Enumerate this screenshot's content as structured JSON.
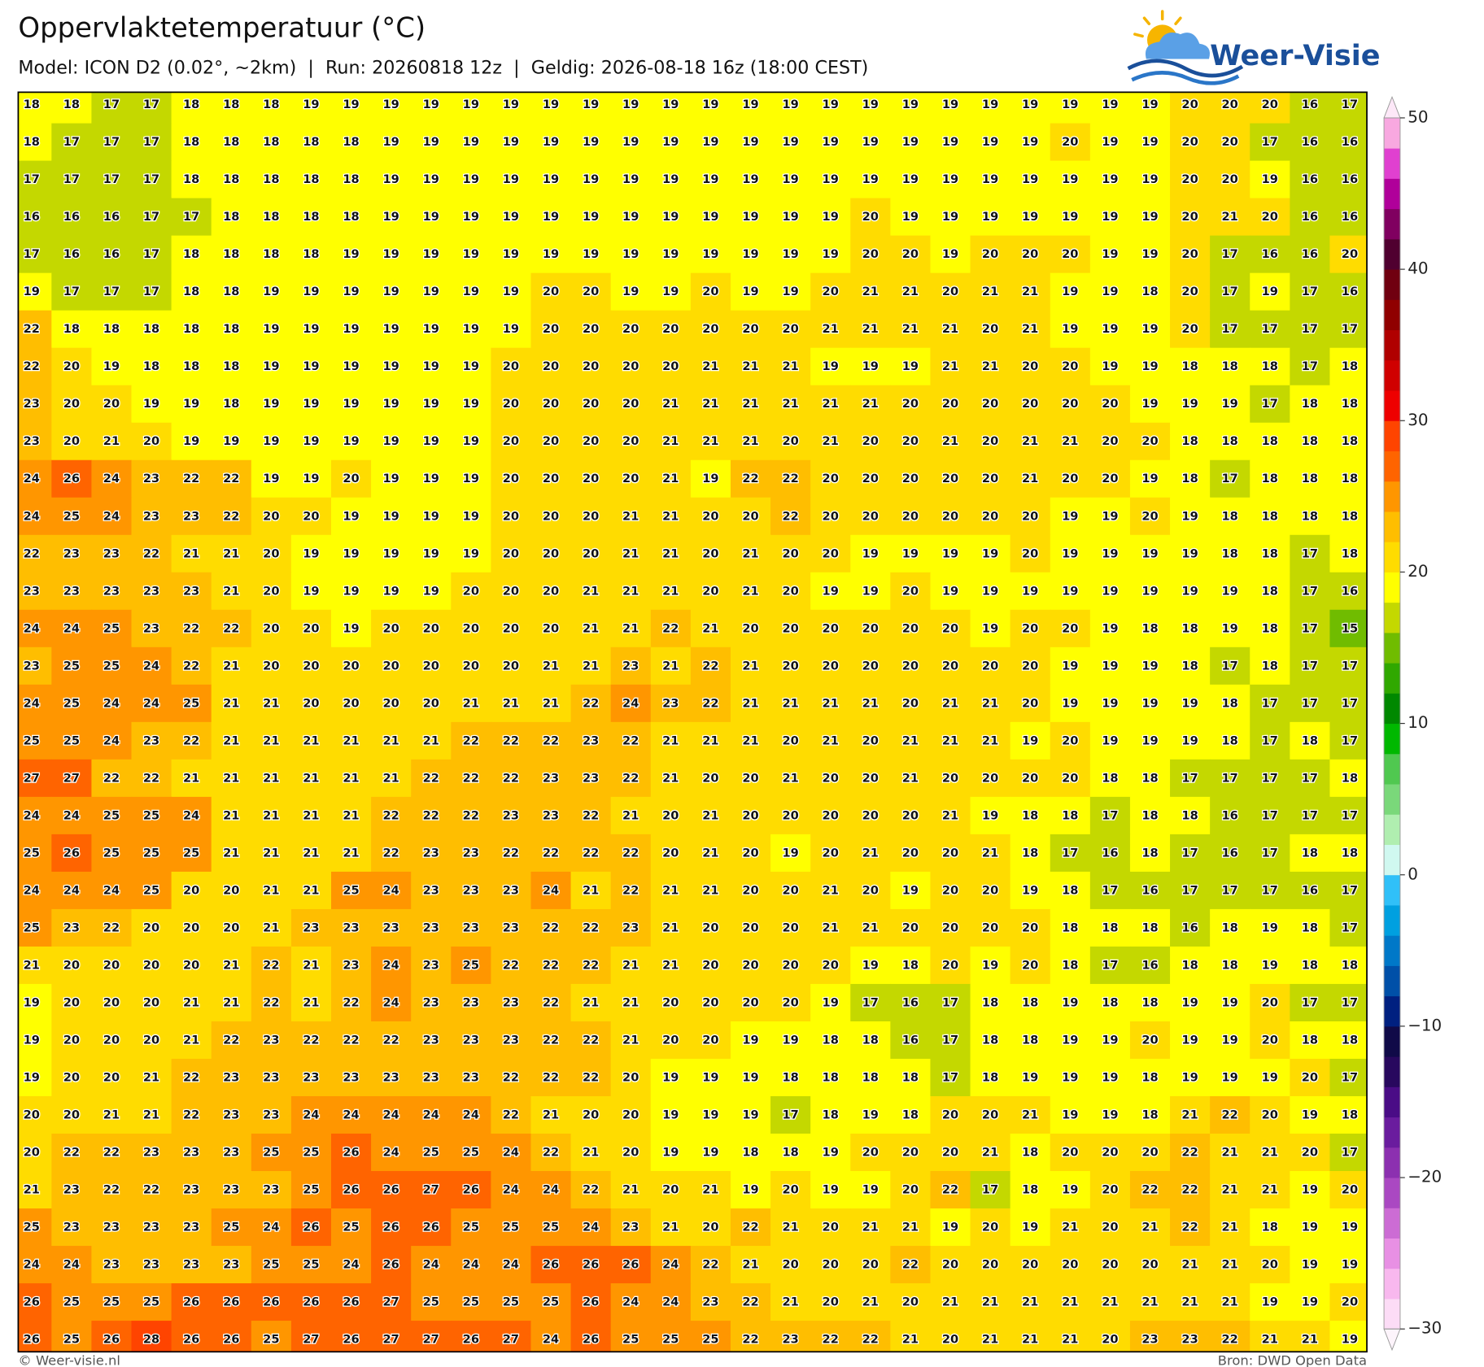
{
  "header": {
    "title": "Oppervlaktetemperatuur (°C)",
    "subtitle": "Model: ICON D2 (0.02°, ~2km)  |  Run: 20260818 12z  |  Geldig: 2026-08-18 16z (18:00 CEST)"
  },
  "logo": {
    "text": "Weer-Visie"
  },
  "footer": {
    "left": "© Weer-visie.nl",
    "right": "Bron: DWD Open Data"
  },
  "map": {
    "grid": [
      [
        18,
        18,
        17,
        17,
        18,
        18,
        18,
        19,
        19,
        19,
        19,
        19,
        19,
        19,
        19,
        19,
        19,
        19,
        19,
        19,
        19,
        19,
        19,
        19,
        19,
        19,
        19,
        19,
        19,
        20,
        20,
        20,
        16,
        17
      ],
      [
        18,
        17,
        17,
        17,
        18,
        18,
        18,
        18,
        18,
        19,
        19,
        19,
        19,
        19,
        19,
        19,
        19,
        19,
        19,
        19,
        19,
        19,
        19,
        19,
        19,
        19,
        20,
        19,
        19,
        20,
        20,
        17,
        16,
        16
      ],
      [
        17,
        17,
        17,
        17,
        18,
        18,
        18,
        18,
        18,
        19,
        19,
        19,
        19,
        19,
        19,
        19,
        19,
        19,
        19,
        19,
        19,
        19,
        19,
        19,
        19,
        19,
        19,
        19,
        19,
        20,
        20,
        19,
        16,
        16
      ],
      [
        16,
        16,
        16,
        17,
        17,
        18,
        18,
        18,
        18,
        19,
        19,
        19,
        19,
        19,
        19,
        19,
        19,
        19,
        19,
        19,
        19,
        20,
        19,
        19,
        19,
        19,
        19,
        19,
        19,
        20,
        21,
        20,
        16,
        16
      ],
      [
        17,
        16,
        16,
        17,
        18,
        18,
        18,
        18,
        19,
        19,
        19,
        19,
        19,
        19,
        19,
        19,
        19,
        19,
        19,
        19,
        19,
        20,
        20,
        19,
        20,
        20,
        20,
        19,
        19,
        20,
        17,
        16,
        16,
        20
      ],
      [
        19,
        17,
        17,
        17,
        18,
        18,
        19,
        19,
        19,
        19,
        19,
        19,
        19,
        20,
        20,
        19,
        19,
        20,
        19,
        19,
        20,
        21,
        21,
        20,
        21,
        21,
        19,
        19,
        18,
        20,
        17,
        19,
        17,
        16
      ],
      [
        22,
        18,
        18,
        18,
        18,
        18,
        19,
        19,
        19,
        19,
        19,
        19,
        19,
        20,
        20,
        20,
        20,
        20,
        20,
        20,
        21,
        21,
        21,
        21,
        20,
        21,
        19,
        19,
        19,
        20,
        17,
        17,
        17,
        17
      ],
      [
        22,
        20,
        19,
        18,
        18,
        18,
        19,
        19,
        19,
        19,
        19,
        19,
        20,
        20,
        20,
        20,
        20,
        21,
        21,
        21,
        19,
        19,
        19,
        21,
        21,
        20,
        20,
        19,
        19,
        18,
        18,
        18,
        17,
        18
      ],
      [
        23,
        20,
        20,
        19,
        19,
        18,
        19,
        19,
        19,
        19,
        19,
        19,
        20,
        20,
        20,
        20,
        21,
        21,
        21,
        21,
        21,
        21,
        20,
        20,
        20,
        20,
        20,
        20,
        19,
        19,
        19,
        17,
        18,
        18
      ],
      [
        23,
        20,
        21,
        20,
        19,
        19,
        19,
        19,
        19,
        19,
        19,
        19,
        20,
        20,
        20,
        20,
        21,
        21,
        21,
        20,
        21,
        20,
        20,
        21,
        20,
        21,
        21,
        20,
        20,
        18,
        18,
        18,
        18,
        18
      ],
      [
        24,
        26,
        24,
        23,
        22,
        22,
        19,
        19,
        20,
        19,
        19,
        19,
        20,
        20,
        20,
        20,
        21,
        19,
        22,
        22,
        20,
        20,
        20,
        20,
        20,
        21,
        20,
        20,
        19,
        18,
        17,
        18,
        18,
        18
      ],
      [
        24,
        25,
        24,
        23,
        23,
        22,
        20,
        20,
        19,
        19,
        19,
        19,
        20,
        20,
        20,
        21,
        21,
        20,
        20,
        22,
        20,
        20,
        20,
        20,
        20,
        20,
        19,
        19,
        20,
        19,
        18,
        18,
        18,
        18
      ],
      [
        22,
        23,
        23,
        22,
        21,
        21,
        20,
        19,
        19,
        19,
        19,
        19,
        20,
        20,
        20,
        21,
        21,
        20,
        21,
        20,
        20,
        19,
        19,
        19,
        19,
        20,
        19,
        19,
        19,
        19,
        18,
        18,
        17,
        18
      ],
      [
        23,
        23,
        23,
        23,
        23,
        21,
        20,
        19,
        19,
        19,
        19,
        20,
        20,
        20,
        21,
        21,
        21,
        20,
        21,
        20,
        19,
        19,
        20,
        19,
        19,
        19,
        19,
        19,
        19,
        19,
        19,
        18,
        17,
        16
      ],
      [
        24,
        24,
        25,
        23,
        22,
        22,
        20,
        20,
        19,
        20,
        20,
        20,
        20,
        20,
        21,
        21,
        22,
        21,
        20,
        20,
        20,
        20,
        20,
        20,
        19,
        20,
        20,
        19,
        18,
        18,
        19,
        18,
        17,
        15
      ],
      [
        23,
        25,
        25,
        24,
        22,
        21,
        20,
        20,
        20,
        20,
        20,
        20,
        20,
        21,
        21,
        23,
        21,
        22,
        21,
        20,
        20,
        20,
        20,
        20,
        20,
        20,
        19,
        19,
        19,
        18,
        17,
        18,
        17,
        17
      ],
      [
        24,
        25,
        24,
        24,
        25,
        21,
        21,
        20,
        20,
        20,
        20,
        21,
        21,
        21,
        22,
        24,
        23,
        22,
        21,
        21,
        21,
        21,
        20,
        21,
        21,
        20,
        19,
        19,
        19,
        19,
        18,
        17,
        17,
        17
      ],
      [
        25,
        25,
        24,
        23,
        22,
        21,
        21,
        21,
        21,
        21,
        21,
        22,
        22,
        22,
        23,
        22,
        21,
        21,
        21,
        20,
        21,
        20,
        21,
        21,
        21,
        19,
        20,
        19,
        19,
        19,
        18,
        17,
        18,
        17
      ],
      [
        27,
        27,
        22,
        22,
        21,
        21,
        21,
        21,
        21,
        21,
        22,
        22,
        22,
        23,
        23,
        22,
        21,
        20,
        20,
        21,
        20,
        20,
        21,
        20,
        20,
        20,
        20,
        18,
        18,
        17,
        17,
        17,
        17,
        18
      ],
      [
        24,
        24,
        25,
        25,
        24,
        21,
        21,
        21,
        21,
        22,
        22,
        22,
        23,
        23,
        22,
        21,
        20,
        21,
        20,
        20,
        20,
        20,
        20,
        21,
        19,
        18,
        18,
        17,
        18,
        18,
        16,
        17,
        17,
        17
      ],
      [
        25,
        26,
        25,
        25,
        25,
        21,
        21,
        21,
        21,
        22,
        23,
        23,
        22,
        22,
        22,
        22,
        20,
        21,
        20,
        19,
        20,
        21,
        20,
        20,
        21,
        18,
        17,
        16,
        18,
        17,
        16,
        17,
        18,
        18
      ],
      [
        24,
        24,
        24,
        25,
        20,
        20,
        21,
        21,
        25,
        24,
        23,
        23,
        23,
        24,
        21,
        22,
        21,
        21,
        20,
        20,
        21,
        20,
        19,
        20,
        20,
        19,
        18,
        17,
        16,
        17,
        17,
        17,
        16,
        17
      ],
      [
        25,
        23,
        22,
        20,
        20,
        20,
        21,
        23,
        23,
        23,
        23,
        23,
        23,
        22,
        22,
        23,
        21,
        20,
        20,
        20,
        21,
        21,
        20,
        20,
        20,
        20,
        18,
        18,
        18,
        16,
        18,
        19,
        18,
        17
      ],
      [
        21,
        20,
        20,
        20,
        20,
        21,
        22,
        21,
        23,
        24,
        23,
        25,
        22,
        22,
        22,
        21,
        21,
        20,
        20,
        20,
        20,
        19,
        18,
        20,
        19,
        20,
        18,
        17,
        16,
        18,
        18,
        19,
        18,
        18
      ],
      [
        19,
        20,
        20,
        20,
        21,
        21,
        22,
        21,
        22,
        24,
        23,
        23,
        23,
        22,
        21,
        21,
        20,
        20,
        20,
        20,
        19,
        17,
        16,
        17,
        18,
        18,
        19,
        18,
        18,
        19,
        19,
        20,
        17,
        17
      ],
      [
        19,
        20,
        20,
        20,
        21,
        22,
        23,
        22,
        22,
        22,
        23,
        23,
        23,
        22,
        22,
        21,
        20,
        20,
        19,
        19,
        18,
        18,
        16,
        17,
        18,
        18,
        19,
        19,
        20,
        19,
        19,
        20,
        18,
        18
      ],
      [
        19,
        20,
        20,
        21,
        22,
        23,
        23,
        23,
        23,
        23,
        23,
        23,
        22,
        22,
        22,
        20,
        19,
        19,
        19,
        18,
        18,
        18,
        18,
        17,
        18,
        19,
        19,
        19,
        18,
        19,
        19,
        19,
        20,
        17
      ],
      [
        20,
        20,
        21,
        21,
        22,
        23,
        23,
        24,
        24,
        24,
        24,
        24,
        22,
        21,
        20,
        20,
        19,
        19,
        19,
        17,
        18,
        19,
        18,
        20,
        20,
        21,
        19,
        19,
        18,
        21,
        22,
        20,
        19,
        18
      ],
      [
        20,
        22,
        22,
        23,
        23,
        23,
        25,
        25,
        26,
        24,
        25,
        25,
        24,
        22,
        21,
        20,
        19,
        19,
        18,
        18,
        19,
        20,
        20,
        20,
        21,
        18,
        20,
        20,
        20,
        22,
        21,
        21,
        20,
        17
      ],
      [
        21,
        23,
        22,
        22,
        23,
        23,
        23,
        25,
        26,
        26,
        27,
        26,
        24,
        24,
        22,
        21,
        20,
        21,
        19,
        20,
        19,
        19,
        20,
        22,
        17,
        18,
        19,
        20,
        22,
        22,
        21,
        21,
        19,
        20
      ],
      [
        25,
        23,
        23,
        23,
        23,
        25,
        24,
        26,
        25,
        26,
        26,
        25,
        25,
        25,
        24,
        23,
        21,
        20,
        22,
        21,
        20,
        21,
        21,
        19,
        20,
        19,
        21,
        20,
        21,
        22,
        21,
        18,
        19,
        19
      ],
      [
        24,
        24,
        23,
        23,
        23,
        23,
        25,
        25,
        24,
        26,
        24,
        24,
        24,
        26,
        26,
        26,
        24,
        22,
        21,
        20,
        20,
        20,
        22,
        20,
        20,
        20,
        20,
        20,
        20,
        21,
        21,
        20,
        19,
        19
      ],
      [
        26,
        25,
        25,
        25,
        26,
        26,
        26,
        26,
        26,
        27,
        25,
        25,
        25,
        25,
        26,
        24,
        24,
        23,
        22,
        21,
        20,
        21,
        20,
        21,
        21,
        21,
        21,
        21,
        21,
        21,
        21,
        19,
        19,
        20
      ],
      [
        26,
        25,
        26,
        28,
        26,
        26,
        25,
        27,
        26,
        27,
        27,
        26,
        27,
        24,
        26,
        25,
        25,
        25,
        22,
        23,
        22,
        22,
        21,
        20,
        21,
        21,
        21,
        20,
        23,
        23,
        22,
        21,
        21,
        19
      ]
    ]
  },
  "colorbar": {
    "lim": [
      -30,
      50
    ],
    "ticks": [
      50,
      40,
      30,
      20,
      10,
      0,
      {
        "value": -10,
        "label": "−10"
      },
      {
        "value": -20,
        "label": "−20"
      },
      {
        "value": -30,
        "label": "−30"
      }
    ],
    "colors": [
      "#fcdcf6",
      "#f8b8ee",
      "#e890e4",
      "#cc6cd4",
      "#aa48c2",
      "#8c30b0",
      "#6a1c9e",
      "#4a0c86",
      "#28085e",
      "#100a48",
      "#002080",
      "#0050a8",
      "#0078c8",
      "#00a0e0",
      "#30c0f8",
      "#d0f8f0",
      "#b0eeb0",
      "#7ad87a",
      "#50c850",
      "#00b800",
      "#008800",
      "#30a800",
      "#70bc00",
      "#c4d800",
      "#ffff00",
      "#ffdc00",
      "#ffbe00",
      "#ff9600",
      "#ff6400",
      "#ff4400",
      "#ee0000",
      "#d00000",
      "#b00000",
      "#900000",
      "#700010",
      "#500030",
      "#800060",
      "#b0009a",
      "#e040d0",
      "#f8a8e0"
    ],
    "under_color": "#fdf4fb",
    "over_color": "#fde8f8"
  }
}
